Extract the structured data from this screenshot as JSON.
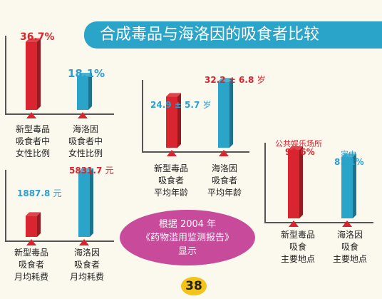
{
  "title": "合成毒品与海洛因的吸食者比较",
  "note": {
    "line1": "根据 2004 年",
    "line2": "《药物滥用监测报告》",
    "line3": "显示"
  },
  "page_number": "38",
  "colors": {
    "red": "#d8252f",
    "blue": "#2aa4c8"
  },
  "chart_data": [
    {
      "type": "bar",
      "panel": "female_ratio",
      "categories": [
        "新型毒品\n吸食者中\n女性比例",
        "海洛因\n吸食者中\n女性比例"
      ],
      "values": [
        36.7,
        18.1
      ],
      "unit": "%",
      "value_labels": [
        "36.7%",
        "18.1%"
      ]
    },
    {
      "type": "bar",
      "panel": "average_age",
      "categories": [
        "新型毒品\n吸食者\n平均年龄",
        "海洛因\n吸食者\n平均年龄"
      ],
      "values": [
        24.9,
        32.2
      ],
      "sd": [
        5.7,
        6.8
      ],
      "unit": "岁",
      "value_labels": [
        "24.9",
        "32.2"
      ],
      "sd_labels": [
        "± 5.7",
        "± 6.8"
      ]
    },
    {
      "type": "bar",
      "panel": "monthly_cost",
      "categories": [
        "新型毒品\n吸食者\n月均耗费",
        "海洛因\n吸食者\n月均耗费"
      ],
      "values": [
        1887.8,
        5831.7
      ],
      "unit": "元",
      "value_labels": [
        "1887.8",
        "5831.7"
      ]
    },
    {
      "type": "bar",
      "panel": "main_location",
      "categories": [
        "新型毒品\n吸食\n主要地点",
        "海洛因\n吸食\n主要地点"
      ],
      "place_labels": [
        "公共娱乐场所",
        "家中"
      ],
      "values": [
        90.6,
        81.1
      ],
      "unit": "%",
      "value_labels": [
        "90.6%",
        "81.1%"
      ]
    }
  ]
}
